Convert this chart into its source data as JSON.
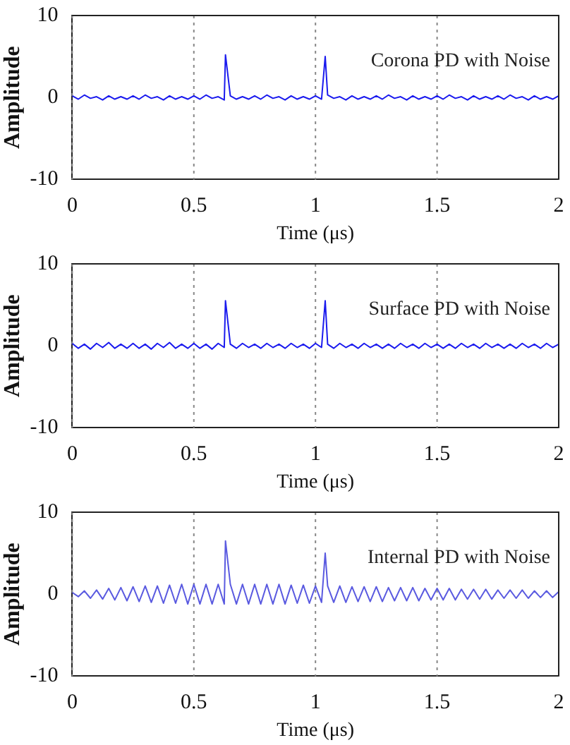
{
  "chart_data": [
    {
      "type": "line",
      "xlabel": "Time (μs)",
      "ylabel": "Amplitude",
      "xlim": [
        0,
        2
      ],
      "xticks": [
        0,
        0.5,
        1,
        1.5,
        2
      ],
      "ylim": [
        -10,
        10
      ],
      "yticks": [
        -10,
        0,
        10
      ],
      "grid": "x",
      "marker": "none",
      "annotations": [
        "Corona PD with Noise"
      ],
      "series": [
        {
          "color": "#1a1aee",
          "x": [
            0,
            0.025,
            0.05,
            0.075,
            0.1,
            0.125,
            0.15,
            0.175,
            0.2,
            0.225,
            0.25,
            0.275,
            0.3,
            0.325,
            0.35,
            0.375,
            0.4,
            0.425,
            0.45,
            0.475,
            0.5,
            0.525,
            0.55,
            0.575,
            0.6,
            0.625,
            0.63,
            0.65,
            0.675,
            0.7,
            0.725,
            0.75,
            0.775,
            0.8,
            0.825,
            0.85,
            0.875,
            0.9,
            0.925,
            0.95,
            0.975,
            1,
            1.025,
            1.04,
            1.05,
            1.075,
            1.1,
            1.125,
            1.15,
            1.175,
            1.2,
            1.225,
            1.25,
            1.275,
            1.3,
            1.325,
            1.35,
            1.375,
            1.4,
            1.425,
            1.45,
            1.475,
            1.5,
            1.525,
            1.55,
            1.575,
            1.6,
            1.625,
            1.65,
            1.675,
            1.7,
            1.725,
            1.75,
            1.775,
            1.8,
            1.825,
            1.85,
            1.875,
            1.9,
            1.925,
            1.95,
            1.975,
            2
          ],
          "values": [
            0.2,
            -0.2,
            0.3,
            -0.1,
            0.1,
            -0.3,
            0.2,
            -0.2,
            0.1,
            -0.2,
            0.2,
            -0.2,
            0.3,
            -0.1,
            0.1,
            -0.3,
            0.2,
            -0.2,
            0.1,
            -0.2,
            0.2,
            -0.2,
            0.3,
            -0.1,
            0.1,
            -0.3,
            5.2,
            0.2,
            -0.2,
            0.1,
            -0.2,
            0.2,
            -0.2,
            0.3,
            -0.1,
            0.1,
            -0.3,
            0.2,
            -0.2,
            0.1,
            -0.2,
            0.2,
            -0.2,
            5,
            0.3,
            -0.1,
            0.1,
            -0.3,
            0.2,
            -0.2,
            0.1,
            -0.2,
            0.2,
            -0.2,
            0.3,
            -0.1,
            0.1,
            -0.3,
            0.2,
            -0.2,
            0.1,
            -0.2,
            0.2,
            -0.2,
            0.3,
            -0.1,
            0.1,
            -0.3,
            0.2,
            -0.2,
            0.1,
            -0.2,
            0.2,
            -0.2,
            0.3,
            -0.1,
            0.1,
            -0.3,
            0.2,
            -0.2,
            0.1,
            -0.2,
            0.2
          ]
        }
      ]
    },
    {
      "type": "line",
      "xlabel": "Time (μs)",
      "ylabel": "Amplitude",
      "xlim": [
        0,
        2
      ],
      "xticks": [
        0,
        0.5,
        1,
        1.5,
        2
      ],
      "ylim": [
        -10,
        10
      ],
      "yticks": [
        -10,
        0,
        10
      ],
      "grid": "x",
      "marker": "none",
      "annotations": [
        "Surface PD with Noise"
      ],
      "series": [
        {
          "color": "#1a1aee",
          "x": [
            0,
            0.025,
            0.05,
            0.075,
            0.1,
            0.125,
            0.15,
            0.175,
            0.2,
            0.225,
            0.25,
            0.275,
            0.3,
            0.325,
            0.35,
            0.375,
            0.4,
            0.425,
            0.45,
            0.475,
            0.5,
            0.525,
            0.55,
            0.575,
            0.6,
            0.625,
            0.63,
            0.65,
            0.675,
            0.7,
            0.725,
            0.75,
            0.775,
            0.8,
            0.825,
            0.85,
            0.875,
            0.9,
            0.925,
            0.95,
            0.975,
            1,
            1.025,
            1.04,
            1.05,
            1.075,
            1.1,
            1.125,
            1.15,
            1.175,
            1.2,
            1.225,
            1.25,
            1.275,
            1.3,
            1.325,
            1.35,
            1.375,
            1.4,
            1.425,
            1.45,
            1.475,
            1.5,
            1.525,
            1.55,
            1.575,
            1.6,
            1.625,
            1.65,
            1.675,
            1.7,
            1.725,
            1.75,
            1.775,
            1.8,
            1.825,
            1.85,
            1.875,
            1.9,
            1.925,
            1.95,
            1.975,
            2
          ],
          "values": [
            0.3,
            -0.3,
            0.2,
            -0.4,
            0.3,
            -0.2,
            0.4,
            -0.3,
            0.2,
            -0.3,
            0.3,
            -0.3,
            0.2,
            -0.4,
            0.3,
            -0.2,
            0.4,
            -0.3,
            0.2,
            -0.3,
            0.3,
            -0.3,
            0.2,
            -0.4,
            0.3,
            -0.2,
            5.5,
            0.2,
            -0.3,
            0.3,
            -0.2,
            0.2,
            -0.3,
            0.3,
            -0.2,
            0.2,
            -0.3,
            0.3,
            -0.2,
            0.2,
            -0.3,
            0.3,
            -0.2,
            5.5,
            0.2,
            -0.3,
            0.3,
            -0.2,
            0.2,
            -0.3,
            0.3,
            -0.2,
            0.2,
            -0.3,
            0.2,
            -0.3,
            0.3,
            -0.2,
            0.2,
            -0.3,
            0.3,
            -0.2,
            0.2,
            -0.3,
            0.2,
            -0.3,
            0.3,
            -0.2,
            0.2,
            -0.3,
            0.3,
            -0.2,
            0.2,
            -0.3,
            0.2,
            -0.3,
            0.3,
            -0.2,
            0.2,
            -0.3,
            0.3,
            -0.2,
            0.2
          ]
        }
      ]
    },
    {
      "type": "line",
      "xlabel": "Time (μs)",
      "ylabel": "Amplitude",
      "xlim": [
        0,
        2
      ],
      "xticks": [
        0,
        0.5,
        1,
        1.5,
        2
      ],
      "ylim": [
        -10,
        10
      ],
      "yticks": [
        -10,
        0,
        10
      ],
      "grid": "x",
      "marker": "none",
      "annotations": [
        "Internal PD with Noise"
      ],
      "series": [
        {
          "color": "#5a5ae0",
          "x": [
            0,
            0.025,
            0.05,
            0.075,
            0.1,
            0.125,
            0.15,
            0.175,
            0.2,
            0.225,
            0.25,
            0.275,
            0.3,
            0.325,
            0.35,
            0.375,
            0.4,
            0.425,
            0.45,
            0.475,
            0.5,
            0.525,
            0.55,
            0.575,
            0.6,
            0.625,
            0.63,
            0.65,
            0.675,
            0.7,
            0.725,
            0.75,
            0.775,
            0.8,
            0.825,
            0.85,
            0.875,
            0.9,
            0.925,
            0.95,
            0.975,
            1,
            1.025,
            1.04,
            1.05,
            1.075,
            1.1,
            1.125,
            1.15,
            1.175,
            1.2,
            1.225,
            1.25,
            1.275,
            1.3,
            1.325,
            1.35,
            1.375,
            1.4,
            1.425,
            1.45,
            1.475,
            1.5,
            1.525,
            1.55,
            1.575,
            1.6,
            1.625,
            1.65,
            1.675,
            1.7,
            1.725,
            1.75,
            1.775,
            1.8,
            1.825,
            1.85,
            1.875,
            1.9,
            1.925,
            1.95,
            1.975,
            2
          ],
          "values": [
            0.2,
            -0.3,
            0.4,
            -0.5,
            0.5,
            -0.6,
            0.7,
            -0.7,
            0.8,
            -0.8,
            0.9,
            -0.9,
            1,
            -1,
            1,
            -1.1,
            1.1,
            -1.1,
            1.2,
            -1.2,
            1.2,
            -1.2,
            1.2,
            -1.2,
            1.2,
            -1.2,
            6.5,
            1.2,
            -1.2,
            1.2,
            -1.2,
            1.2,
            -1.2,
            1.2,
            -1.2,
            1.2,
            -1.2,
            1.1,
            -1.1,
            1.1,
            -1.1,
            1,
            -1,
            5,
            1,
            -1,
            1,
            -1,
            0.9,
            -0.9,
            0.9,
            -0.9,
            0.9,
            -0.9,
            0.8,
            -0.8,
            0.8,
            -0.8,
            0.8,
            -0.8,
            0.7,
            -0.7,
            0.7,
            -0.7,
            0.7,
            -0.7,
            0.6,
            -0.6,
            0.6,
            -0.6,
            0.6,
            -0.6,
            0.5,
            -0.5,
            0.5,
            -0.5,
            0.5,
            -0.5,
            0.4,
            -0.4,
            0.4,
            -0.4,
            0.3
          ]
        }
      ]
    }
  ]
}
